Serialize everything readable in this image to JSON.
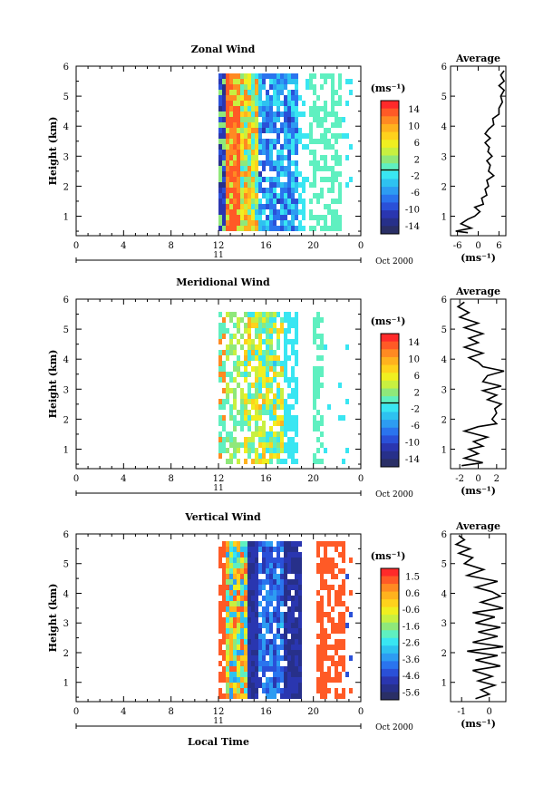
{
  "figure": {
    "x_axis_label": "Local Time",
    "date_label": "11",
    "date_suffix": "Oct 2000"
  },
  "chart_data": [
    {
      "type": "heatmap",
      "title": "Zonal Wind",
      "ylabel": "Height (km)",
      "x_ticks": [
        "0",
        "4",
        "8",
        "12",
        "16",
        "20",
        "0"
      ],
      "x_range_hours": [
        0,
        24
      ],
      "data_start_hour": 12,
      "y_ticks": [
        1,
        2,
        3,
        4,
        5,
        6
      ],
      "ylim": [
        0.35,
        6
      ],
      "colorbar": {
        "unit_label": "(ms⁻¹)",
        "ticks": [
          "14",
          "10",
          "6",
          "2",
          "-2",
          "-6",
          "-10",
          "-14"
        ],
        "range": [
          -16,
          16
        ],
        "contour_level": 0
      },
      "average_panel": {
        "title": "Average",
        "unit_label": "(ms⁻¹)",
        "x_ticks": [
          "-6",
          "0",
          "6"
        ],
        "xlim": [
          -8,
          8
        ],
        "profile": [
          [
            -3,
            0.45
          ],
          [
            -6.5,
            0.5
          ],
          [
            -2,
            0.6
          ],
          [
            -5,
            0.75
          ],
          [
            -3,
            0.9
          ],
          [
            -1,
            1
          ],
          [
            0.5,
            1.15
          ],
          [
            -1,
            1.3
          ],
          [
            1.5,
            1.4
          ],
          [
            1,
            1.6
          ],
          [
            2.5,
            1.7
          ],
          [
            2,
            1.9
          ],
          [
            3,
            2
          ],
          [
            2.5,
            2.2
          ],
          [
            4.5,
            2.35
          ],
          [
            3,
            2.5
          ],
          [
            3.5,
            2.7
          ],
          [
            2.5,
            2.85
          ],
          [
            4,
            3
          ],
          [
            2.8,
            3.15
          ],
          [
            3.2,
            3.3
          ],
          [
            2,
            3.45
          ],
          [
            3.5,
            3.6
          ],
          [
            2,
            3.75
          ],
          [
            3,
            3.9
          ],
          [
            4.5,
            4.05
          ],
          [
            4.2,
            4.25
          ],
          [
            6,
            4.4
          ],
          [
            6,
            4.6
          ],
          [
            7,
            4.8
          ],
          [
            6.5,
            5
          ],
          [
            7.5,
            5.2
          ],
          [
            6,
            5.35
          ],
          [
            7.5,
            5.5
          ],
          [
            6.5,
            5.7
          ],
          [
            7.5,
            5.85
          ]
        ]
      }
    },
    {
      "type": "heatmap",
      "title": "Meridional Wind",
      "ylabel": "Height (km)",
      "x_ticks": [
        "0",
        "4",
        "8",
        "12",
        "16",
        "20",
        "0"
      ],
      "x_range_hours": [
        0,
        24
      ],
      "data_start_hour": 12,
      "y_ticks": [
        1,
        2,
        3,
        4,
        5,
        6
      ],
      "ylim": [
        0.35,
        6
      ],
      "colorbar": {
        "unit_label": "(ms⁻¹)",
        "ticks": [
          "14",
          "10",
          "6",
          "2",
          "-2",
          "-6",
          "-10",
          "-14"
        ],
        "range": [
          -16,
          16
        ],
        "contour_level": 0
      },
      "average_panel": {
        "title": "Average",
        "unit_label": "(ms⁻¹)",
        "x_ticks": [
          "-2",
          "0",
          "2"
        ],
        "xlim": [
          -3,
          3
        ],
        "profile": [
          [
            -1.8,
            0.45
          ],
          [
            0.5,
            0.55
          ],
          [
            -1.5,
            0.7
          ],
          [
            0,
            0.85
          ],
          [
            -1,
            1
          ],
          [
            0.5,
            1.1
          ],
          [
            -0.5,
            1.25
          ],
          [
            1,
            1.4
          ],
          [
            -1.5,
            1.6
          ],
          [
            0,
            1.75
          ],
          [
            2,
            1.85
          ],
          [
            1.5,
            2
          ],
          [
            2,
            2.2
          ],
          [
            1.8,
            2.35
          ],
          [
            2.5,
            2.5
          ],
          [
            1,
            2.65
          ],
          [
            2,
            2.8
          ],
          [
            0.5,
            2.95
          ],
          [
            2.5,
            3.1
          ],
          [
            0.5,
            3.25
          ],
          [
            1,
            3.45
          ],
          [
            2.8,
            3.6
          ],
          [
            0.5,
            3.75
          ],
          [
            0,
            3.9
          ],
          [
            -1,
            4.05
          ],
          [
            0.5,
            4.2
          ],
          [
            -1.5,
            4.4
          ],
          [
            0,
            4.55
          ],
          [
            -1,
            4.7
          ],
          [
            0.5,
            4.85
          ],
          [
            -1.5,
            5.05
          ],
          [
            0,
            5.2
          ],
          [
            -2,
            5.4
          ],
          [
            -1,
            5.55
          ],
          [
            -2.2,
            5.75
          ],
          [
            -1.5,
            5.9
          ]
        ]
      }
    },
    {
      "type": "heatmap",
      "title": "Vertical Wind",
      "ylabel": "Height (km)",
      "x_ticks": [
        "0",
        "4",
        "8",
        "12",
        "16",
        "20",
        "0"
      ],
      "x_range_hours": [
        0,
        24
      ],
      "data_start_hour": 12,
      "y_ticks": [
        1,
        2,
        3,
        4,
        5,
        6
      ],
      "ylim": [
        0.35,
        6
      ],
      "colorbar": {
        "unit_label": "(ms⁻¹)",
        "ticks": [
          "1.5",
          "0.6",
          "-0.6",
          "-1.6",
          "-2.6",
          "-3.6",
          "-4.6",
          "-5.6"
        ],
        "range": [
          -6,
          2
        ],
        "contour_level": null
      },
      "average_panel": {
        "title": "Average",
        "unit_label": "(ms⁻¹)",
        "x_ticks": [
          "-1",
          "0"
        ],
        "xlim": [
          -1.4,
          0.6
        ],
        "profile": [
          [
            -0.5,
            0.45
          ],
          [
            0,
            0.6
          ],
          [
            -0.3,
            0.75
          ],
          [
            0.2,
            0.9
          ],
          [
            -0.4,
            1.05
          ],
          [
            0.1,
            1.2
          ],
          [
            -0.6,
            1.4
          ],
          [
            0.4,
            1.55
          ],
          [
            -0.5,
            1.75
          ],
          [
            0.3,
            1.9
          ],
          [
            -0.8,
            2.05
          ],
          [
            0.5,
            2.2
          ],
          [
            -0.6,
            2.35
          ],
          [
            0.3,
            2.55
          ],
          [
            -0.4,
            2.7
          ],
          [
            0.4,
            2.85
          ],
          [
            -0.5,
            3
          ],
          [
            0.2,
            3.2
          ],
          [
            -0.6,
            3.35
          ],
          [
            0.5,
            3.5
          ],
          [
            -0.3,
            3.7
          ],
          [
            0.4,
            3.9
          ],
          [
            0.1,
            4.05
          ],
          [
            -0.5,
            4.2
          ],
          [
            0.3,
            4.4
          ],
          [
            -0.8,
            4.6
          ],
          [
            -0.2,
            4.8
          ],
          [
            -0.9,
            5
          ],
          [
            -0.6,
            5.2
          ],
          [
            -1.1,
            5.35
          ],
          [
            -0.7,
            5.5
          ],
          [
            -1.2,
            5.65
          ],
          [
            -0.9,
            5.8
          ],
          [
            -1.1,
            5.95
          ]
        ]
      }
    }
  ]
}
